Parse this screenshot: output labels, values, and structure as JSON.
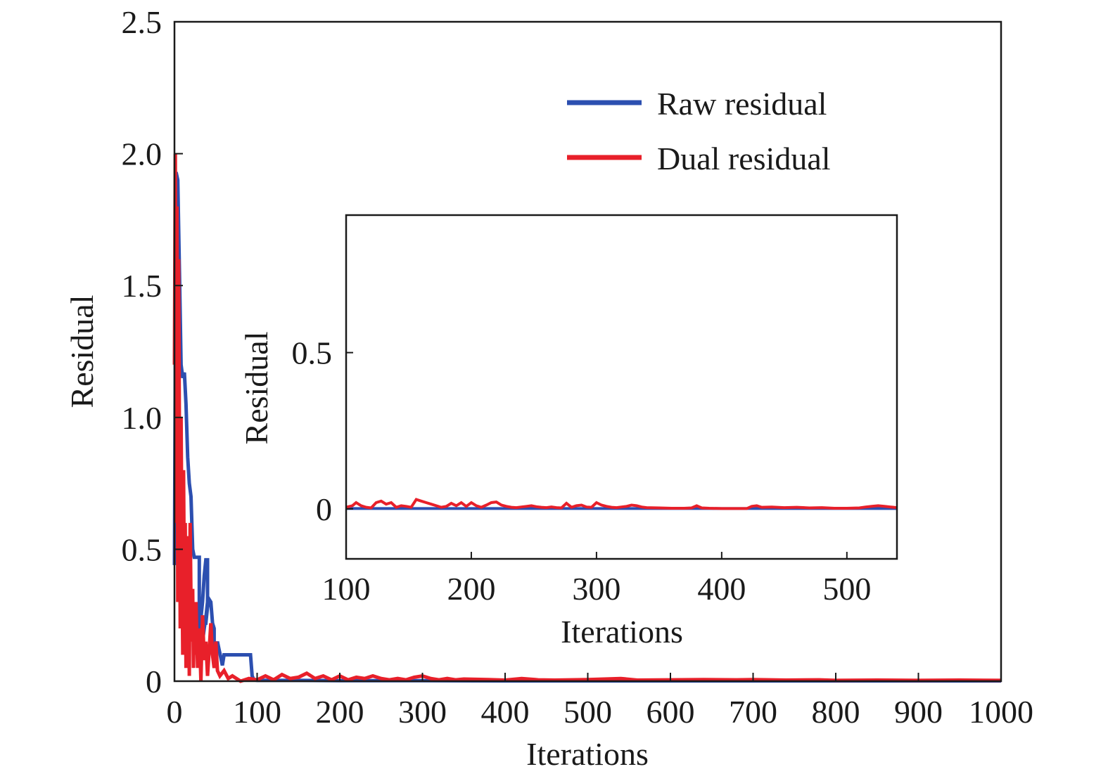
{
  "chart_data": [
    {
      "id": "main",
      "type": "line",
      "title": "",
      "xlabel": "Iterations",
      "ylabel": "Residual",
      "xlim": [
        0,
        1000
      ],
      "ylim": [
        0,
        2.5
      ],
      "xticks": [
        0,
        100,
        200,
        300,
        400,
        500,
        600,
        700,
        800,
        900,
        1000
      ],
      "xtick_labels": [
        "0",
        "100",
        "200",
        "300",
        "400",
        "500",
        "600",
        "700",
        "800",
        "900",
        "1000"
      ],
      "yticks": [
        0,
        0.5,
        1.0,
        1.5,
        2.0,
        2.5
      ],
      "ytick_labels": [
        "0",
        "0.5",
        "1.0",
        "1.5",
        "2.0",
        "2.5"
      ],
      "grid": false,
      "legend": "top-right",
      "series": [
        {
          "name": "Raw residual",
          "color": "#2c4fb0",
          "x": [
            0,
            2,
            4,
            6,
            8,
            10,
            12,
            14,
            16,
            18,
            20,
            22,
            24,
            26,
            28,
            30,
            30,
            32,
            34,
            36,
            38,
            40,
            40,
            38,
            36,
            34,
            32,
            32,
            34,
            36,
            38,
            40,
            42,
            44,
            46,
            48,
            48,
            50,
            52,
            54,
            56,
            58,
            60,
            62,
            64,
            66,
            66,
            70,
            74,
            78,
            82,
            86,
            90,
            92,
            94,
            96,
            100,
            150,
            200,
            300,
            400,
            500,
            600,
            700,
            800,
            900,
            1000
          ],
          "y": [
            0.44,
            1.93,
            1.9,
            1.55,
            1.2,
            1.15,
            1.17,
            1.05,
            0.85,
            0.75,
            0.7,
            0.5,
            0.47,
            0.47,
            0.47,
            0.47,
            0.2,
            0.24,
            0.3,
            0.4,
            0.46,
            0.46,
            0.3,
            0.24,
            0.2,
            0.15,
            0.12,
            0.2,
            0.22,
            0.22,
            0.22,
            0.28,
            0.31,
            0.3,
            0.22,
            0.2,
            0.1,
            0.13,
            0.15,
            0.12,
            0.09,
            0.06,
            0.1,
            0.1,
            0.1,
            0.1,
            0.1,
            0.1,
            0.1,
            0.1,
            0.1,
            0.1,
            0.1,
            0.1,
            0.02,
            0.005,
            0.003,
            0.003,
            0.002,
            0.002,
            0.001,
            0.001,
            0.001,
            0.001,
            0.001,
            0.001,
            0.001
          ]
        },
        {
          "name": "Dual residual",
          "color": "#e8202a",
          "x": [
            0,
            1,
            2,
            3,
            4,
            5,
            6,
            7,
            8,
            9,
            10,
            11,
            12,
            13,
            14,
            15,
            16,
            17,
            18,
            19,
            20,
            21,
            22,
            23,
            24,
            25,
            26,
            28,
            30,
            32,
            34,
            36,
            38,
            40,
            42,
            44,
            46,
            48,
            50,
            52,
            55,
            60,
            65,
            70,
            80,
            90,
            100,
            110,
            120,
            130,
            140,
            150,
            160,
            170,
            180,
            190,
            200,
            210,
            220,
            230,
            240,
            250,
            260,
            270,
            280,
            290,
            300,
            310,
            320,
            330,
            340,
            350,
            380,
            400,
            420,
            440,
            460,
            500,
            540,
            560,
            600,
            640,
            680,
            700,
            740,
            780,
            800,
            850,
            900,
            950,
            1000
          ],
          "y": [
            1.2,
            2.0,
            0.6,
            1.8,
            0.3,
            1.6,
            0.9,
            0.2,
            1.0,
            0.5,
            0.1,
            0.8,
            0.3,
            0.6,
            0.05,
            0.55,
            0.2,
            0.4,
            0.02,
            0.6,
            0.3,
            0.15,
            0.35,
            0.05,
            0.25,
            0.1,
            0.3,
            0.05,
            0.2,
            0.0,
            0.25,
            0.08,
            0.15,
            0.02,
            0.12,
            0.22,
            0.1,
            0.05,
            0.15,
            0.04,
            0.02,
            0.04,
            0.01,
            0.02,
            0.0,
            0.01,
            0.005,
            0.02,
            0.005,
            0.025,
            0.01,
            0.015,
            0.03,
            0.01,
            0.02,
            0.005,
            0.02,
            0.005,
            0.015,
            0.01,
            0.02,
            0.01,
            0.005,
            0.01,
            0.005,
            0.015,
            0.02,
            0.01,
            0.005,
            0.01,
            0.005,
            0.008,
            0.006,
            0.004,
            0.01,
            0.005,
            0.004,
            0.006,
            0.01,
            0.004,
            0.005,
            0.006,
            0.005,
            0.006,
            0.004,
            0.005,
            0.003,
            0.004,
            0.003,
            0.004,
            0.003
          ]
        }
      ]
    },
    {
      "id": "inset",
      "type": "line",
      "title": "",
      "xlabel": "Iterations",
      "ylabel": "Residual",
      "xlim": [
        100,
        540
      ],
      "ylim": [
        -0.16,
        0.94
      ],
      "xticks": [
        100,
        200,
        300,
        400,
        500
      ],
      "xtick_labels": [
        "100",
        "200",
        "300",
        "400",
        "500"
      ],
      "yticks": [
        0,
        0.5
      ],
      "ytick_labels": [
        "0",
        "0.5"
      ],
      "grid": false,
      "series": [
        {
          "name": "Raw residual",
          "color": "#2c4fb0",
          "x": [
            100,
            540
          ],
          "y": [
            0.001,
            0.001
          ]
        },
        {
          "name": "Dual residual",
          "color": "#e8202a",
          "x": [
            100,
            105,
            108,
            112,
            116,
            120,
            124,
            128,
            132,
            136,
            140,
            144,
            148,
            152,
            156,
            160,
            164,
            168,
            172,
            176,
            180,
            184,
            188,
            192,
            196,
            200,
            204,
            208,
            212,
            216,
            220,
            224,
            228,
            232,
            236,
            240,
            244,
            248,
            252,
            256,
            260,
            264,
            268,
            272,
            276,
            280,
            284,
            288,
            292,
            296,
            300,
            304,
            308,
            312,
            316,
            320,
            324,
            328,
            332,
            336,
            340,
            350,
            360,
            370,
            376,
            380,
            384,
            390,
            400,
            410,
            420,
            424,
            428,
            432,
            440,
            450,
            460,
            470,
            480,
            490,
            500,
            510,
            515,
            520,
            525,
            530,
            535,
            540
          ],
          "y": [
            0.005,
            0.01,
            0.02,
            0.01,
            0.005,
            0.003,
            0.02,
            0.025,
            0.015,
            0.02,
            0.005,
            0.01,
            0.008,
            0.005,
            0.03,
            0.025,
            0.02,
            0.015,
            0.01,
            0.005,
            0.008,
            0.018,
            0.01,
            0.02,
            0.008,
            0.02,
            0.01,
            0.005,
            0.012,
            0.02,
            0.022,
            0.012,
            0.008,
            0.005,
            0.004,
            0.006,
            0.008,
            0.01,
            0.007,
            0.005,
            0.004,
            0.006,
            0.004,
            0.003,
            0.018,
            0.005,
            0.01,
            0.012,
            0.006,
            0.005,
            0.02,
            0.012,
            0.008,
            0.005,
            0.004,
            0.006,
            0.008,
            0.012,
            0.01,
            0.006,
            0.004,
            0.003,
            0.002,
            0.002,
            0.003,
            0.01,
            0.003,
            0.002,
            0.001,
            0.001,
            0.001,
            0.008,
            0.01,
            0.005,
            0.006,
            0.004,
            0.005,
            0.003,
            0.004,
            0.002,
            0.002,
            0.003,
            0.006,
            0.008,
            0.01,
            0.008,
            0.006,
            0.004
          ]
        }
      ]
    }
  ]
}
